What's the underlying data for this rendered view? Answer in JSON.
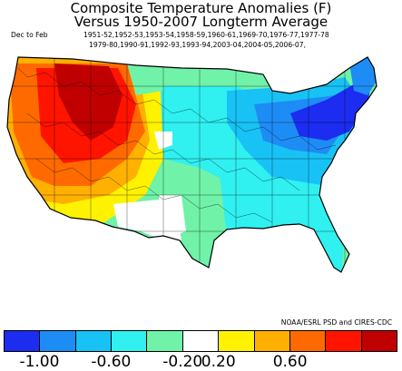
{
  "title": {
    "line1": "Composite Temperature Anomalies (F)",
    "line2": "Versus 1950-2007 Longterm Average"
  },
  "season": {
    "label": "Dec to Feb",
    "years_line1": "1951-52,1952-53,1953-54,1958-59,1960-61,1969-70,1976-77,1977-78",
    "years_line2": "1979-80,1990-91,1992-93,1993-94,2003-04,2004-05,2006-07,"
  },
  "credit": "NOAA/ESRL PSD and CIRES-CDC",
  "colorbar": {
    "colors": [
      "#1c2cf0",
      "#1e8cf5",
      "#18c2f5",
      "#30f0f0",
      "#70f2a8",
      "#ffffff",
      "#fff200",
      "#ffb000",
      "#ff6a00",
      "#ff1400",
      "#c00000"
    ],
    "tick_labels": [
      "-1.00",
      "-0.60",
      "-0.20",
      "0.20",
      "0.60"
    ]
  },
  "map_data": {
    "anomaly_regions": [
      {
        "region": "Pacific Northwest coast",
        "value": 0.6
      },
      {
        "region": "Washington / Oregon interior",
        "value": 1.0
      },
      {
        "region": "Idaho / western Montana",
        "value": 1.0
      },
      {
        "region": "Nevada / Utah",
        "value": 1.0
      },
      {
        "region": "California",
        "value": 0.6
      },
      {
        "region": "Southern California coast",
        "value": 0.4
      },
      {
        "region": "Arizona",
        "value": 0.4
      },
      {
        "region": "Wyoming / Colorado",
        "value": 0.8
      },
      {
        "region": "New Mexico / west Texas",
        "value": 0.2
      },
      {
        "region": "Montana plains",
        "value": -0.2
      },
      {
        "region": "Dakotas / Nebraska",
        "value": -0.4
      },
      {
        "region": "Kansas / Oklahoma",
        "value": -0.4
      },
      {
        "region": "Texas",
        "value": -0.4
      },
      {
        "region": "Texas border",
        "value": 0.0
      },
      {
        "region": "Upper Midwest",
        "value": -0.6
      },
      {
        "region": "Ohio Valley",
        "value": -0.8
      },
      {
        "region": "Great Lakes",
        "value": -0.8
      },
      {
        "region": "Mid-Atlantic",
        "value": -1.0
      },
      {
        "region": "New England",
        "value": -0.8
      },
      {
        "region": "Southeast",
        "value": -0.6
      },
      {
        "region": "Gulf Coast",
        "value": -0.4
      },
      {
        "region": "Florida",
        "value": -0.6
      }
    ]
  }
}
